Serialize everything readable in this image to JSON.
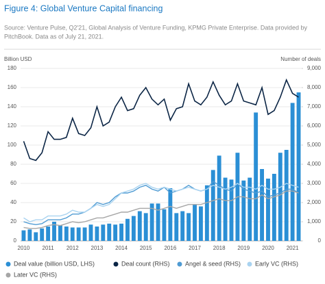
{
  "chart_data": {
    "type": "combo",
    "title": "Figure 4: Global Venture Capital financing",
    "subtitle": [
      "Source: Venture Pulse, Q2'21, Global Analysis of Venture Funding, KPMG Private Enterprise. Data provided by",
      "PitchBook. Data as of July 21, 2021."
    ],
    "y_label": "Billion USD",
    "y2_label": "Number of deals",
    "categories": [
      "2010",
      null,
      null,
      null,
      "2011",
      null,
      null,
      null,
      "2012",
      null,
      null,
      null,
      "2013",
      null,
      null,
      null,
      "2014",
      null,
      null,
      null,
      "2015",
      null,
      null,
      null,
      "2016",
      null,
      null,
      null,
      "2017",
      null,
      null,
      null,
      "2018",
      null,
      null,
      null,
      "2019",
      null,
      null,
      null,
      "2020",
      null,
      null,
      null,
      "2021",
      null
    ],
    "ylim": [
      0,
      180
    ],
    "yticks": [
      0,
      20,
      40,
      60,
      80,
      100,
      120,
      140,
      160,
      180
    ],
    "y2lim": [
      0,
      9000
    ],
    "y2ticks": [
      0,
      {
        "value": 1000,
        "label": "1,000"
      },
      {
        "value": 2000,
        "label": "2,000"
      },
      {
        "value": 3000,
        "label": "3,000"
      },
      {
        "value": 4000,
        "label": "4,000"
      },
      {
        "value": 5000,
        "label": "5,000"
      },
      {
        "value": 6000,
        "label": "6,000"
      },
      {
        "value": 7000,
        "label": "7,000"
      },
      {
        "value": 8000,
        "label": "8,000"
      },
      {
        "value": 9000,
        "label": "9,000"
      }
    ],
    "grid": true,
    "legend": "bottom",
    "series": [
      {
        "name": "Deal value (billion USD, LHS)",
        "type": "bar",
        "color": "#2b8fd5",
        "values": [
          11,
          12,
          9,
          13,
          15,
          20,
          16,
          15,
          14,
          14,
          14,
          17,
          15,
          17,
          18,
          17,
          18,
          23,
          26,
          31,
          29,
          39,
          39,
          33,
          55,
          29,
          31,
          29,
          38,
          36,
          58,
          74,
          89,
          66,
          64,
          92,
          63,
          66,
          134,
          75,
          65,
          70,
          92,
          95,
          144,
          155
        ]
      },
      {
        "name": "Deal count (RHS)",
        "type": "line",
        "axis": "y2",
        "color": "#0b2545",
        "values": [
          5200,
          4300,
          4200,
          4600,
          5700,
          5300,
          5300,
          5400,
          6400,
          5600,
          5500,
          5900,
          7000,
          6000,
          6200,
          7000,
          7500,
          6800,
          6900,
          7600,
          8000,
          7400,
          7100,
          7400,
          6300,
          6900,
          7000,
          8200,
          7300,
          7100,
          7500,
          8300,
          7600,
          7100,
          7300,
          8200,
          7300,
          7200,
          7100,
          8000,
          6600,
          6800,
          7500,
          8400,
          7700,
          7500
        ]
      },
      {
        "name": "Angel & seed (RHS)",
        "type": "line",
        "axis": "y2",
        "color": "#4f9bd3",
        "values": [
          1000,
          900,
          850,
          900,
          1100,
          1100,
          1100,
          1200,
          1400,
          1400,
          1500,
          1700,
          2000,
          1900,
          2000,
          2300,
          2500,
          2500,
          2600,
          2800,
          2900,
          2700,
          2600,
          2800,
          2500,
          2600,
          2700,
          2900,
          2700,
          2600,
          2700,
          3100,
          2900,
          2700,
          2600,
          3000,
          2700,
          2600,
          2500,
          2600,
          2300,
          2400,
          2500,
          2700,
          2700,
          2500
        ]
      },
      {
        "name": "Early VC (RHS)",
        "type": "line",
        "axis": "y2",
        "color": "#a9d3f0",
        "values": [
          1200,
          1000,
          1100,
          1100,
          1300,
          1300,
          1300,
          1400,
          1600,
          1500,
          1500,
          1700,
          1900,
          1800,
          1900,
          2200,
          2500,
          2600,
          2700,
          2900,
          3000,
          2800,
          2700,
          2800,
          2700,
          2600,
          2700,
          2800,
          2700,
          2600,
          2700,
          2900,
          2800,
          2700,
          2800,
          3000,
          2800,
          2800,
          2700,
          2900,
          2700,
          2700,
          2800,
          3000,
          2900,
          2800
        ]
      },
      {
        "name": "Later VC (RHS)",
        "type": "line",
        "axis": "y2",
        "color": "#a6a6a6",
        "values": [
          700,
          650,
          650,
          700,
          800,
          850,
          800,
          900,
          1000,
          950,
          1000,
          1100,
          1200,
          1200,
          1300,
          1400,
          1500,
          1500,
          1600,
          1700,
          1700,
          1700,
          1600,
          1700,
          1800,
          1700,
          1800,
          1900,
          1900,
          1900,
          2000,
          2100,
          2200,
          2100,
          2100,
          2300,
          2300,
          2200,
          2200,
          2400,
          2200,
          2300,
          2400,
          2600,
          2600,
          2500
        ]
      }
    ]
  }
}
